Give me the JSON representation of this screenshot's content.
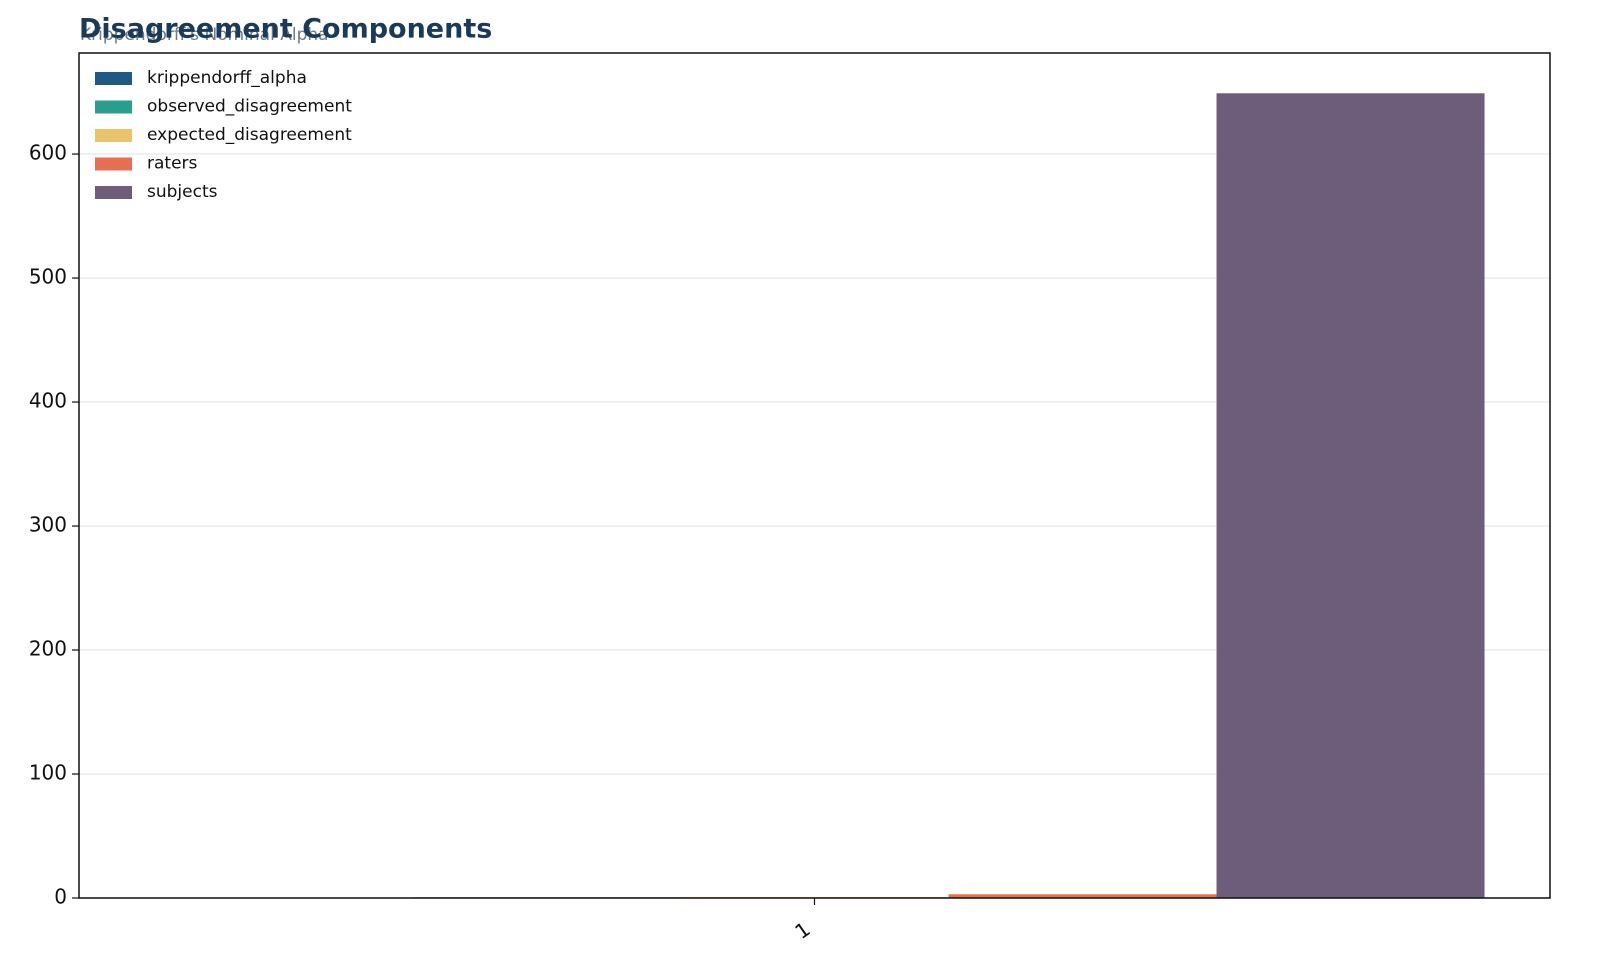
{
  "chart_data": {
    "type": "bar",
    "title": "Disagreement Components",
    "subtitle": "Krippendorff's Nominal Alpha",
    "categories": [
      "1"
    ],
    "series": [
      {
        "name": "krippendorff_alpha",
        "color": "#1f5a84",
        "values": [
          0.35
        ]
      },
      {
        "name": "observed_disagreement",
        "color": "#2a9d8f",
        "values": [
          0.55
        ]
      },
      {
        "name": "expected_disagreement",
        "color": "#e9c46a",
        "values": [
          0.85
        ]
      },
      {
        "name": "raters",
        "color": "#e76f51",
        "values": [
          3
        ]
      },
      {
        "name": "subjects",
        "color": "#6d5c7a",
        "values": [
          649
        ]
      }
    ],
    "ylim": [
      0,
      681.5
    ],
    "yticks": [
      0,
      100,
      200,
      300,
      400,
      500,
      600
    ],
    "grid": true,
    "legend": "upper left"
  }
}
